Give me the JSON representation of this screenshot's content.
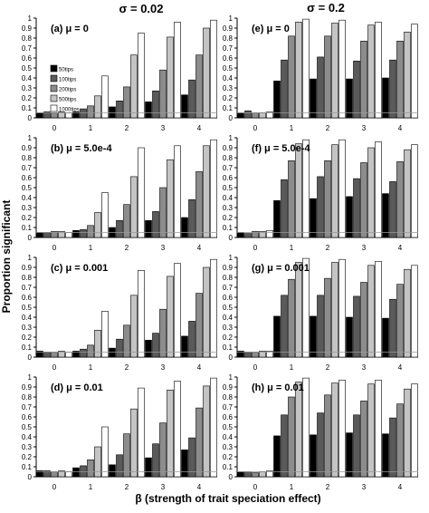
{
  "figure": {
    "ylabel": "Proportion significant",
    "xlabel": "β (strength of trait speciation effect)",
    "column_titles": [
      "σ = 0.02",
      "σ = 0.2"
    ]
  },
  "style": {
    "series_colors": [
      "#000000",
      "#5a5a5a",
      "#8c8c8c",
      "#c4c4c4",
      "#ffffff"
    ],
    "reference_line_color": "#999999"
  },
  "chart_data": [
    {
      "type": "bar",
      "panel_label": "(a) μ = 0",
      "categories": [
        "0",
        "1",
        "2",
        "3",
        "4"
      ],
      "ylim": [
        0,
        1
      ],
      "yticks": [
        "0",
        "0.1",
        "0.2",
        "0.3",
        "0.4",
        "0.5",
        "0.6",
        "0.7",
        "0.8",
        "0.9",
        "1"
      ],
      "reference_line": 0.05,
      "legend": "upper-left",
      "series": [
        {
          "name": "50tips",
          "values": [
            0.05,
            0.06,
            0.11,
            0.16,
            0.23
          ]
        },
        {
          "name": "100tips",
          "values": [
            0.06,
            0.09,
            0.17,
            0.27,
            0.38
          ]
        },
        {
          "name": "200tips",
          "values": [
            0.05,
            0.12,
            0.31,
            0.48,
            0.63
          ]
        },
        {
          "name": "500tips",
          "values": [
            0.06,
            0.22,
            0.63,
            0.81,
            0.9
          ]
        },
        {
          "name": "1000tips",
          "values": [
            0.05,
            0.42,
            0.85,
            0.96,
            0.98
          ]
        }
      ]
    },
    {
      "type": "bar",
      "panel_label": "(e) μ = 0",
      "categories": [
        "0",
        "1",
        "2",
        "3",
        "4"
      ],
      "ylim": [
        0,
        1
      ],
      "yticks": [
        "0",
        "0.1",
        "0.2",
        "0.3",
        "0.4",
        "0.5",
        "0.6",
        "0.7",
        "0.8",
        "0.9",
        "1"
      ],
      "reference_line": 0.05,
      "series": [
        {
          "values": [
            0.05,
            0.37,
            0.39,
            0.39,
            0.4
          ]
        },
        {
          "values": [
            0.07,
            0.58,
            0.61,
            0.57,
            0.58
          ]
        },
        {
          "values": [
            0.05,
            0.82,
            0.82,
            0.77,
            0.77
          ]
        },
        {
          "values": [
            0.05,
            0.96,
            0.95,
            0.93,
            0.86
          ]
        },
        {
          "values": [
            0.06,
            0.99,
            0.98,
            0.96,
            0.94
          ]
        }
      ]
    },
    {
      "type": "bar",
      "panel_label": "(b) μ = 5.0e-4",
      "categories": [
        "0",
        "1",
        "2",
        "3",
        "4"
      ],
      "ylim": [
        0,
        1
      ],
      "yticks": [
        "0",
        "0.1",
        "0.2",
        "0.3",
        "0.4",
        "0.5",
        "0.6",
        "0.7",
        "0.8",
        "0.9",
        "1"
      ],
      "reference_line": 0.05,
      "series": [
        {
          "values": [
            0.05,
            0.07,
            0.1,
            0.17,
            0.2
          ]
        },
        {
          "values": [
            0.05,
            0.08,
            0.17,
            0.26,
            0.38
          ]
        },
        {
          "values": [
            0.06,
            0.12,
            0.33,
            0.5,
            0.66
          ]
        },
        {
          "values": [
            0.06,
            0.25,
            0.61,
            0.78,
            0.92
          ]
        },
        {
          "values": [
            0.05,
            0.45,
            0.9,
            0.92,
            0.98
          ]
        }
      ]
    },
    {
      "type": "bar",
      "panel_label": "(f) μ = 5.0e-4",
      "categories": [
        "0",
        "1",
        "2",
        "3",
        "4"
      ],
      "ylim": [
        0,
        1
      ],
      "yticks": [
        "0",
        "0.1",
        "0.2",
        "0.3",
        "0.4",
        "0.5",
        "0.6",
        "0.7",
        "0.8",
        "0.9",
        "1"
      ],
      "reference_line": 0.05,
      "series": [
        {
          "values": [
            0.05,
            0.37,
            0.39,
            0.41,
            0.44
          ]
        },
        {
          "values": [
            0.04,
            0.58,
            0.61,
            0.59,
            0.56
          ]
        },
        {
          "values": [
            0.06,
            0.77,
            0.77,
            0.75,
            0.76
          ]
        },
        {
          "values": [
            0.06,
            0.94,
            0.93,
            0.9,
            0.88
          ]
        },
        {
          "values": [
            0.07,
            0.98,
            0.98,
            0.96,
            0.93
          ]
        }
      ]
    },
    {
      "type": "bar",
      "panel_label": "(c) μ = 0.001",
      "categories": [
        "0",
        "1",
        "2",
        "3",
        "4"
      ],
      "ylim": [
        0,
        1
      ],
      "yticks": [
        "0",
        "0.1",
        "0.2",
        "0.3",
        "0.4",
        "0.5",
        "0.6",
        "0.7",
        "0.8",
        "0.9",
        "1"
      ],
      "reference_line": 0.05,
      "series": [
        {
          "values": [
            0.06,
            0.06,
            0.09,
            0.17,
            0.21
          ]
        },
        {
          "values": [
            0.05,
            0.08,
            0.18,
            0.24,
            0.36
          ]
        },
        {
          "values": [
            0.05,
            0.12,
            0.32,
            0.48,
            0.64
          ]
        },
        {
          "values": [
            0.06,
            0.27,
            0.62,
            0.81,
            0.9
          ]
        },
        {
          "values": [
            0.05,
            0.46,
            0.87,
            0.94,
            0.98
          ]
        }
      ]
    },
    {
      "type": "bar",
      "panel_label": "(g) μ = 0.001",
      "categories": [
        "0",
        "1",
        "2",
        "3",
        "4"
      ],
      "ylim": [
        0,
        1
      ],
      "yticks": [
        "0",
        "0.1",
        "0.2",
        "0.3",
        "0.4",
        "0.5",
        "0.6",
        "0.7",
        "0.8",
        "0.9",
        "1"
      ],
      "reference_line": 0.05,
      "series": [
        {
          "values": [
            0.06,
            0.41,
            0.41,
            0.4,
            0.39
          ]
        },
        {
          "values": [
            0.05,
            0.62,
            0.62,
            0.61,
            0.58
          ]
        },
        {
          "values": [
            0.05,
            0.78,
            0.79,
            0.75,
            0.73
          ]
        },
        {
          "values": [
            0.06,
            0.95,
            0.95,
            0.92,
            0.88
          ]
        },
        {
          "values": [
            0.06,
            0.99,
            0.98,
            0.96,
            0.92
          ]
        }
      ]
    },
    {
      "type": "bar",
      "panel_label": "(d) μ = 0.01",
      "categories": [
        "0",
        "1",
        "2",
        "3",
        "4"
      ],
      "ylim": [
        0,
        1
      ],
      "yticks": [
        "0",
        "0.1",
        "0.2",
        "0.3",
        "0.4",
        "0.5",
        "0.6",
        "0.7",
        "0.8",
        "0.9",
        "1"
      ],
      "reference_line": 0.05,
      "series": [
        {
          "values": [
            0.06,
            0.09,
            0.12,
            0.19,
            0.27
          ]
        },
        {
          "values": [
            0.06,
            0.11,
            0.22,
            0.33,
            0.39
          ]
        },
        {
          "values": [
            0.05,
            0.17,
            0.43,
            0.54,
            0.69
          ]
        },
        {
          "values": [
            0.06,
            0.3,
            0.68,
            0.87,
            0.91
          ]
        },
        {
          "values": [
            0.05,
            0.5,
            0.89,
            0.96,
            0.99
          ]
        }
      ]
    },
    {
      "type": "bar",
      "panel_label": "(h) μ = 0.01",
      "categories": [
        "0",
        "1",
        "2",
        "3",
        "4"
      ],
      "ylim": [
        0,
        1
      ],
      "yticks": [
        "0",
        "0.1",
        "0.2",
        "0.3",
        "0.4",
        "0.5",
        "0.6",
        "0.7",
        "0.8",
        "0.9",
        "1"
      ],
      "reference_line": 0.05,
      "series": [
        {
          "values": [
            0.05,
            0.41,
            0.42,
            0.44,
            0.43
          ]
        },
        {
          "values": [
            0.05,
            0.62,
            0.64,
            0.62,
            0.59
          ]
        },
        {
          "values": [
            0.04,
            0.8,
            0.82,
            0.76,
            0.73
          ]
        },
        {
          "values": [
            0.05,
            0.95,
            0.94,
            0.93,
            0.88
          ]
        },
        {
          "values": [
            0.06,
            0.99,
            0.97,
            0.97,
            0.93
          ]
        }
      ]
    }
  ]
}
